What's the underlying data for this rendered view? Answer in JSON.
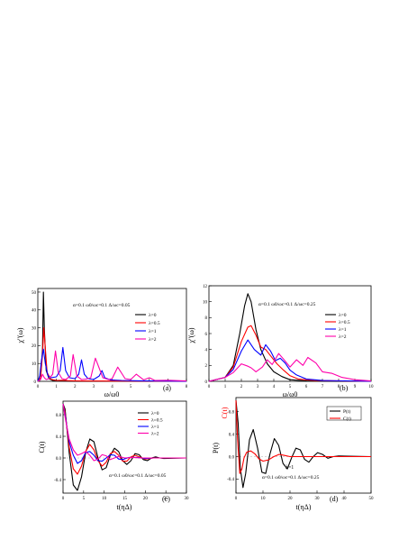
{
  "chart_data": [
    {
      "panel": "(a)",
      "type": "line",
      "ylabel": "χ''(ω)",
      "xlabel": "ω/ω0",
      "xlim": [
        0,
        8
      ],
      "ylim": [
        0,
        52
      ],
      "xticks": [
        "0",
        "1",
        "2",
        "3",
        "4",
        "5",
        "6",
        "7",
        "8"
      ],
      "yticks": [
        "0",
        "10",
        "20",
        "30",
        "40",
        "50"
      ],
      "params": "α=0.1   ω0/ωc=0.1   Δ/ωc=0.05",
      "legend": {
        "position": "top-right",
        "labels": [
          "λ=0",
          "λ=0.5",
          "λ=1",
          "λ=2"
        ]
      },
      "series": [
        {
          "name": "λ=0",
          "color": "#000000",
          "x": [
            0,
            0.15,
            0.25,
            0.3,
            0.35,
            0.45,
            0.6,
            0.8,
            1.2,
            2,
            8
          ],
          "y": [
            0,
            2,
            18,
            50,
            30,
            6,
            1.5,
            0.5,
            0.3,
            0.1,
            0
          ]
        },
        {
          "name": "λ=0.5",
          "color": "#ff0000",
          "x": [
            0,
            0.15,
            0.25,
            0.32,
            0.38,
            0.5,
            0.7,
            1,
            1.4,
            1.6,
            2,
            2.5,
            8
          ],
          "y": [
            0,
            2,
            15,
            30,
            22,
            5,
            1.2,
            0.5,
            0.6,
            0.4,
            0.3,
            0.2,
            0
          ]
        },
        {
          "name": "λ=1",
          "color": "#0000ff",
          "x": [
            0,
            0.1,
            0.2,
            0.3,
            0.4,
            0.55,
            0.7,
            1.0,
            1.2,
            1.35,
            1.5,
            1.7,
            2.0,
            2.2,
            2.35,
            2.5,
            2.7,
            3.0,
            3.3,
            3.45,
            3.6,
            3.9,
            4.5,
            5.5,
            8
          ],
          "y": [
            0,
            3,
            12,
            18,
            10,
            3,
            2,
            2.5,
            6,
            19,
            6,
            2,
            1.5,
            4,
            12,
            4,
            1.5,
            1,
            3,
            6,
            2,
            0.8,
            0.5,
            0.3,
            0
          ]
        },
        {
          "name": "λ=2",
          "color": "#ff00aa",
          "x": [
            0,
            0.15,
            0.25,
            0.35,
            0.45,
            0.6,
            0.8,
            0.95,
            1.1,
            1.3,
            1.5,
            1.75,
            1.9,
            2.1,
            2.35,
            2.6,
            2.85,
            3.1,
            3.5,
            3.8,
            4.0,
            4.3,
            4.7,
            5.0,
            5.3,
            5.7,
            6.0,
            6.3,
            7.0,
            8.0
          ],
          "y": [
            0,
            1,
            4,
            2,
            1,
            1.5,
            4,
            17,
            5,
            1.5,
            1,
            3,
            15,
            3,
            1,
            1.2,
            2,
            13,
            2,
            1,
            1.5,
            8,
            1.5,
            1,
            4,
            0.8,
            2,
            0.5,
            0.6,
            0.2
          ]
        }
      ]
    },
    {
      "panel": "(b)",
      "type": "line",
      "ylabel": "χ''(ω)",
      "xlabel": "ω/ω0",
      "xlim": [
        0,
        10
      ],
      "ylim": [
        0,
        12
      ],
      "xticks": [
        "0",
        "1",
        "2",
        "3",
        "4",
        "5",
        "6",
        "7",
        "8",
        "9",
        "10"
      ],
      "yticks": [
        "0",
        "2",
        "4",
        "6",
        "8",
        "10",
        "12"
      ],
      "params": "α=0.1   ω0/ωc=0.1   Δ/ωc=0.25",
      "legend": {
        "position": "right",
        "labels": [
          "λ=0",
          "λ=0.5",
          "λ=1",
          "λ=2"
        ]
      },
      "series": [
        {
          "name": "λ=0",
          "color": "#000000",
          "x": [
            0,
            1,
            1.5,
            1.9,
            2.2,
            2.4,
            2.6,
            2.9,
            3.2,
            3.6,
            4,
            4.5,
            5,
            6,
            10
          ],
          "y": [
            0,
            0.5,
            2,
            6,
            9.5,
            11,
            10,
            6.5,
            4,
            2.2,
            1.2,
            0.6,
            0.2,
            0.05,
            0
          ]
        },
        {
          "name": "λ=0.5",
          "color": "#ff0000",
          "x": [
            0,
            1,
            1.5,
            2.0,
            2.4,
            2.6,
            2.9,
            3.2,
            3.5,
            3.8,
            4.2,
            4.6,
            5,
            5.5,
            6.5,
            10
          ],
          "y": [
            0,
            0.5,
            1.8,
            5,
            6.8,
            7,
            5.8,
            4.3,
            4,
            3.2,
            2.2,
            1.4,
            0.7,
            0.3,
            0.1,
            0
          ]
        },
        {
          "name": "λ=1",
          "color": "#0000ff",
          "x": [
            0,
            1,
            1.5,
            2.0,
            2.4,
            2.8,
            3.2,
            3.5,
            3.8,
            4.1,
            4.4,
            4.7,
            5.0,
            5.4,
            6,
            7,
            10
          ],
          "y": [
            0,
            0.5,
            1.5,
            3.8,
            5.2,
            4,
            3.3,
            4.6,
            3.8,
            2.6,
            2.9,
            2.3,
            1.4,
            0.8,
            0.3,
            0.1,
            0
          ]
        },
        {
          "name": "λ=2",
          "color": "#ff00aa",
          "x": [
            0,
            1,
            1.5,
            2.0,
            2.4,
            2.6,
            2.9,
            3.3,
            3.6,
            3.9,
            4.3,
            4.6,
            5.0,
            5.4,
            5.8,
            6.1,
            6.6,
            7.0,
            7.6,
            8.2,
            9,
            10
          ],
          "y": [
            0,
            0.5,
            1.1,
            2.2,
            1.9,
            1.7,
            1.2,
            1.8,
            2.7,
            2.1,
            3.5,
            2.8,
            1.8,
            2.7,
            2.0,
            3.0,
            2.3,
            1.2,
            1.0,
            0.5,
            0.2,
            0.05
          ]
        }
      ]
    },
    {
      "panel": "(c)",
      "type": "line",
      "ylabel": "C(t)",
      "xlabel": "t(ηΔ)",
      "xlim": [
        0,
        30
      ],
      "ylim": [
        -0.65,
        1.05
      ],
      "xticks": [
        "0",
        "5",
        "10",
        "15",
        "20",
        "25",
        "30"
      ],
      "yticks": [
        "-0.4",
        "0.0",
        "0.4",
        "0.8"
      ],
      "params": "α=0.1   ω0/ωc=0.1   Δ/ωc=0.05",
      "legend": {
        "position": "top-right",
        "labels": [
          "λ=0",
          "λ=0.5",
          "λ=1",
          "λ=2"
        ]
      },
      "series": [
        {
          "name": "λ=0",
          "color": "#000000",
          "x": [
            0,
            0.5,
            1.5,
            2.5,
            3.5,
            4.5,
            5.5,
            6.5,
            7.5,
            8.5,
            9.5,
            10.5,
            11.5,
            12.5,
            13.5,
            14.5,
            15.5,
            16.5,
            17.5,
            18.5,
            19.5,
            20.5,
            21.5,
            22.5,
            23.5,
            24.5,
            30
          ],
          "y": [
            1,
            0.9,
            0.1,
            -0.5,
            -0.6,
            -0.35,
            0.1,
            0.35,
            0.3,
            0.0,
            -0.22,
            -0.18,
            0.05,
            0.18,
            0.12,
            -0.05,
            -0.12,
            -0.05,
            0.08,
            0.06,
            -0.03,
            -0.05,
            0.0,
            0.02,
            0.0,
            -0.01,
            0.0
          ]
        },
        {
          "name": "λ=0.5",
          "color": "#ff0000",
          "x": [
            0,
            0.5,
            1.5,
            2.5,
            3.5,
            4.5,
            5.5,
            6.5,
            7.5,
            8.5,
            9.5,
            10.5,
            11.5,
            12.5,
            13.5,
            14.5,
            15.5,
            16.5,
            17.5,
            18.5,
            20,
            22,
            30
          ],
          "y": [
            1,
            0.85,
            0.2,
            -0.2,
            -0.3,
            -0.15,
            0.12,
            0.25,
            0.15,
            -0.05,
            -0.15,
            -0.08,
            0.08,
            0.12,
            0.05,
            -0.06,
            -0.06,
            0.02,
            0.05,
            0.02,
            -0.02,
            0.0,
            0.0
          ]
        },
        {
          "name": "λ=1",
          "color": "#0000ff",
          "x": [
            0,
            0.5,
            1.5,
            2.5,
            3.5,
            4.5,
            5.5,
            6.5,
            7.5,
            8.5,
            9.5,
            10.5,
            11.5,
            12.5,
            13.5,
            14.5,
            16,
            18,
            20,
            22,
            30
          ],
          "y": [
            1,
            0.8,
            0.3,
            0.05,
            -0.1,
            -0.05,
            0.1,
            0.12,
            0.05,
            -0.05,
            -0.06,
            0.0,
            0.06,
            0.05,
            -0.02,
            -0.03,
            0.01,
            0.01,
            -0.01,
            0.0,
            0.0
          ]
        },
        {
          "name": "λ=2",
          "color": "#ff00aa",
          "x": [
            0,
            0.5,
            1.5,
            2.5,
            3.5,
            4.5,
            5.5,
            6.5,
            7.5,
            8.5,
            9.5,
            10.5,
            11.5,
            12.5,
            13.5,
            15,
            17,
            19,
            21,
            30
          ],
          "y": [
            1,
            0.75,
            0.35,
            0.15,
            0.05,
            0.08,
            0.12,
            0.05,
            -0.05,
            -0.02,
            0.06,
            0.04,
            -0.03,
            0.0,
            0.03,
            0.0,
            0.01,
            0.0,
            0.0,
            0.0
          ]
        }
      ]
    },
    {
      "panel": "(d)",
      "type": "line",
      "ylabel": "P(t)",
      "ylabel_right": "C(t)",
      "xlabel": "t(ηΔ)",
      "xlim": [
        0,
        50
      ],
      "ylim": [
        -0.65,
        1.05
      ],
      "xticks": [
        "0",
        "10",
        "20",
        "30",
        "40",
        "50"
      ],
      "yticks": [
        "-0.4",
        "0.0",
        "0.4",
        "0.8"
      ],
      "params": "α=0.1   ω0/ωc=0.1   Δ/ωc=0.25",
      "lambda_note": "λ=1",
      "legend": {
        "position": "top-right",
        "labels": [
          "P(t)",
          "C(t)"
        ]
      },
      "series": [
        {
          "name": "P(t)",
          "color": "#000000",
          "x": [
            0,
            0.8,
            1.6,
            2.6,
            3.6,
            5,
            6.4,
            8,
            9.6,
            11,
            12.6,
            14.2,
            15.8,
            17.4,
            19,
            20.6,
            22.2,
            23.8,
            25.4,
            27,
            28.6,
            30.2,
            32,
            34,
            36,
            38,
            50
          ],
          "y": [
            1,
            0.6,
            -0.2,
            -0.55,
            -0.3,
            0.3,
            0.48,
            0.15,
            -0.28,
            -0.3,
            0.05,
            0.32,
            0.2,
            -0.12,
            -0.22,
            -0.02,
            0.15,
            0.12,
            -0.05,
            -0.1,
            0.0,
            0.07,
            0.04,
            -0.03,
            0.0,
            0.01,
            0.0
          ]
        },
        {
          "name": "C(t)",
          "color": "#ff0000",
          "x": [
            0,
            0.6,
            1.4,
            2.2,
            3.0,
            4.0,
            5.5,
            7,
            8.5,
            10,
            12,
            14,
            16,
            18,
            20,
            24,
            28,
            50
          ],
          "y": [
            1,
            0.3,
            -0.3,
            -0.22,
            -0.02,
            0.08,
            0.1,
            0.05,
            -0.04,
            -0.08,
            -0.06,
            0.0,
            0.04,
            0.02,
            0.0,
            0.0,
            0.0,
            0.0
          ]
        }
      ]
    }
  ]
}
